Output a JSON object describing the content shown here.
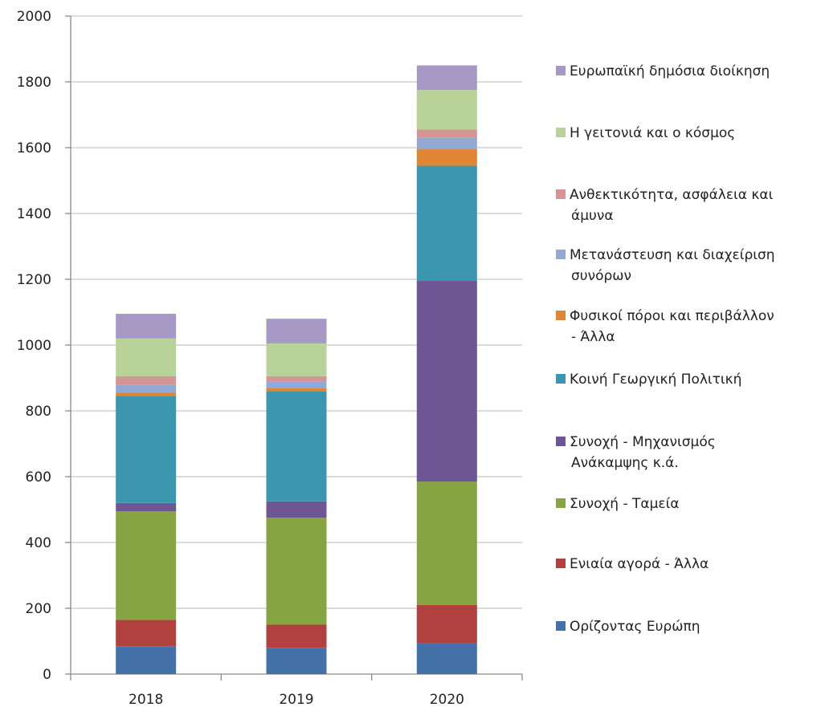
{
  "chart_data": {
    "type": "bar",
    "stacked": true,
    "title": "",
    "xlabel": "",
    "ylabel": "",
    "ylim": [
      0,
      2000
    ],
    "yticks": [
      0,
      200,
      400,
      600,
      800,
      1000,
      1200,
      1400,
      1600,
      1800,
      2000
    ],
    "grid": true,
    "legend_position": "right",
    "categories": [
      "2018",
      "2019",
      "2020"
    ],
    "series": [
      {
        "name": "Ορίζοντας Ευρώπη",
        "color": "#4472A8",
        "values": [
          85,
          80,
          95
        ]
      },
      {
        "name": "Ενιαία αγορά - Άλλα",
        "color": "#B0413E",
        "values": [
          80,
          70,
          115
        ]
      },
      {
        "name": "Συνοχή - Ταμεία",
        "color": "#86A441",
        "values": [
          330,
          325,
          375
        ]
      },
      {
        "name": "Συνοχή - Μηχανισμός Ανάκαμψης κ.ά.",
        "color": "#6E5594",
        "values": [
          25,
          50,
          610
        ]
      },
      {
        "name": "Κοινή Γεωργική Πολιτική",
        "color": "#3A97AF",
        "values": [
          325,
          335,
          350
        ]
      },
      {
        "name": "Φυσικοί πόροι και περιβάλλον - Άλλα",
        "color": "#E08533",
        "values": [
          10,
          10,
          50
        ]
      },
      {
        "name": "Μετανάστευση και διαχείριση συνόρων",
        "color": "#93A9D3",
        "values": [
          25,
          20,
          35
        ]
      },
      {
        "name": "Ανθεκτικότητα, ασφάλεια και άμυνα",
        "color": "#D59594",
        "values": [
          25,
          15,
          25
        ]
      },
      {
        "name": "Η γειτονιά και ο κόσμος",
        "color": "#B9D297",
        "values": [
          115,
          100,
          120
        ]
      },
      {
        "name": "Ευρωπαϊκή δημόσια διοίκηση",
        "color": "#A799C6",
        "values": [
          75,
          75,
          75
        ]
      }
    ],
    "legend_lines": [
      [
        "Ευρωπαϊκή δημόσια διοίκηση"
      ],
      [
        "Η γειτονιά και ο κόσμος"
      ],
      [
        "Ανθεκτικότητα, ασφάλεια και",
        "άμυνα"
      ],
      [
        "Μετανάστευση και διαχείριση",
        "συνόρων"
      ],
      [
        "Φυσικοί πόροι και περιβάλλον",
        "- Άλλα"
      ],
      [
        "Κοινή Γεωργική Πολιτική"
      ],
      [
        "Συνοχή - Μηχανισμός",
        "Ανάκαμψης κ.ά."
      ],
      [
        "Συνοχή - Ταμεία"
      ],
      [
        "Ενιαία αγορά - Άλλα"
      ],
      [
        "Ορίζοντας Ευρώπη"
      ]
    ]
  }
}
